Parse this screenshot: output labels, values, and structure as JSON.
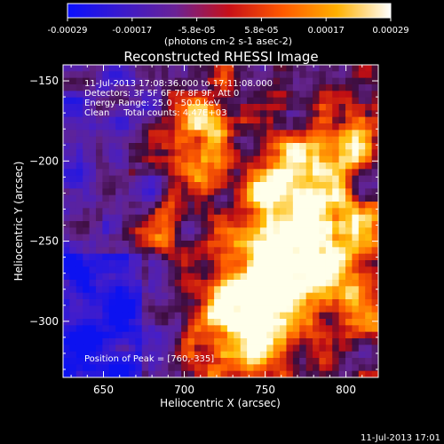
{
  "chart_data": {
    "type": "heatmap",
    "title": "Reconstructed RHESSI Image",
    "xlabel": "Heliocentric X (arcsec)",
    "ylabel": "Heliocentric Y (arcsec)",
    "xlim": [
      625,
      820
    ],
    "ylim": [
      -335,
      -140
    ],
    "x_ticks": [
      "650",
      "700",
      "750",
      "800"
    ],
    "y_ticks": [
      "-150",
      "-200",
      "-250",
      "-300"
    ],
    "colorbar": {
      "range": [
        -0.00029,
        0.00029
      ],
      "ticks": [
        "-0.00029",
        "-0.00017",
        "-5.8e-05",
        "5.8e-05",
        "0.00017",
        "0.00029"
      ],
      "unit": "(photons cm-2 s-1 asec-2)",
      "colors": [
        "#0a10ff",
        "#3a1acc",
        "#6a2296",
        "#c81018",
        "#ff5a00",
        "#ffb000",
        "#ffffff"
      ]
    },
    "annotations": [
      "11-Jul-2013 17:08:36.000 to 17:11:08.000",
      "Detectors: 3F 5F 6F 7F 8F 9F, Att 0",
      "Energy Range: 25.0 - 50.0 keV",
      "Clean     Total counts: 4.47E+03"
    ],
    "peak_label": "Position of Peak = [760,-335]"
  },
  "footer_timestamp": "11-Jul-2013 17:01"
}
